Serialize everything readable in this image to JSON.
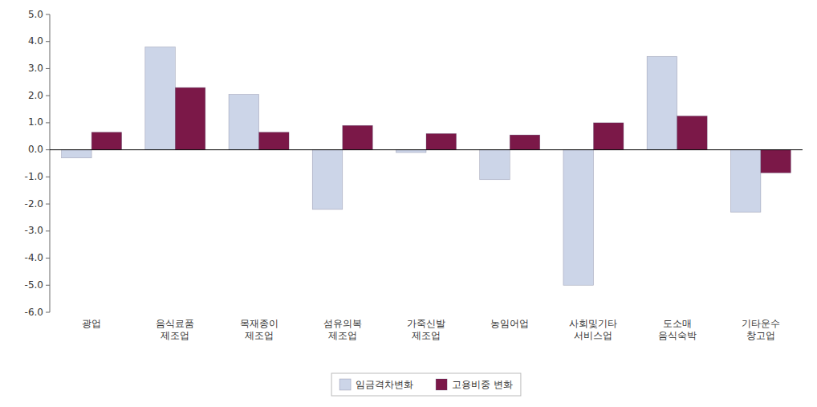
{
  "chart_data": {
    "type": "bar",
    "categories": [
      "광업",
      "음식료품\n제조업",
      "목재종이\n제조업",
      "섬유의복\n제조업",
      "가죽신발\n제조업",
      "농임어업",
      "사회및기타\n서비스업",
      "도소매\n음식숙박",
      "기타운수\n창고업"
    ],
    "series": [
      {
        "name": "임금격차변화",
        "color": "#ccd5e8",
        "values": [
          -0.3,
          3.8,
          2.05,
          -2.2,
          -0.1,
          -1.1,
          -5.0,
          3.45,
          -2.3
        ]
      },
      {
        "name": "고용비중 변화",
        "color": "#7b1848",
        "values": [
          0.65,
          2.3,
          0.65,
          0.9,
          0.6,
          0.55,
          1.0,
          1.25,
          -0.85
        ]
      }
    ],
    "ylim": [
      -6.0,
      5.0
    ],
    "yticks": [
      {
        "value": -6.0,
        "label": "-6.0"
      },
      {
        "value": -5.0,
        "label": "-5.0"
      },
      {
        "value": -4.0,
        "label": "-4.0"
      },
      {
        "value": -3.0,
        "label": "-3.0"
      },
      {
        "value": -2.0,
        "label": "-2.0"
      },
      {
        "value": -1.0,
        "label": "-1.0"
      },
      {
        "value": 0.0,
        "label": "0.0"
      },
      {
        "value": 1.0,
        "label": "1.0"
      },
      {
        "value": 2.0,
        "label": "2.0"
      },
      {
        "value": 3.0,
        "label": "3.0"
      },
      {
        "value": 4.0,
        "label": "4.0"
      },
      {
        "value": 5.0,
        "label": "5.0"
      }
    ],
    "grid": false,
    "legend": "bottom"
  }
}
